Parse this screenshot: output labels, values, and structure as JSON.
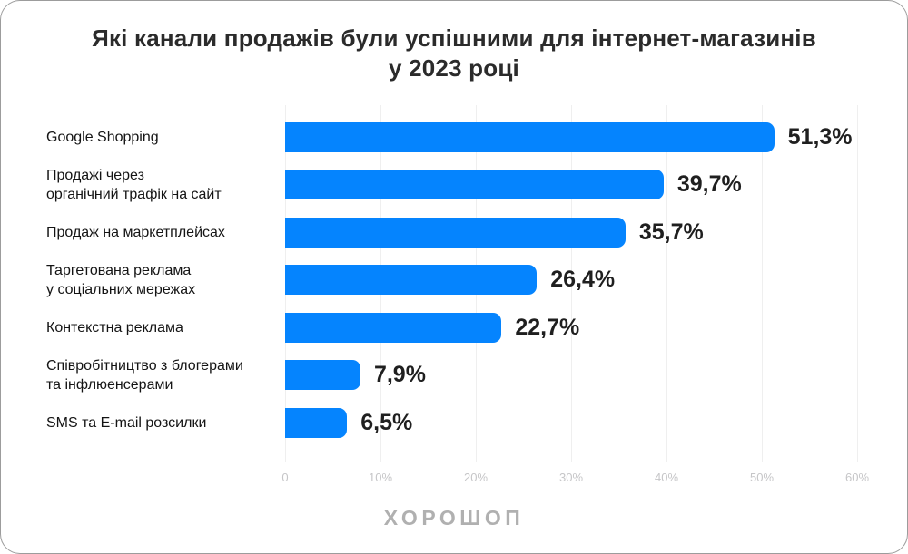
{
  "title": {
    "line1": "Які канали продажів були успішними для інтернет-магазинів",
    "line2": "у 2023 році"
  },
  "chart_data": {
    "type": "bar",
    "orientation": "horizontal",
    "title": "Які канали продажів були успішними для інтернет-магазинів у 2023 році",
    "categories": [
      "Google Shopping",
      "Продажі через органічний трафік на сайт",
      "Продаж на маркетплейсах",
      "Таргетована реклама у соціальних мережах",
      "Контекстна реклама",
      "Співробітництво з блогерами та інфлюенсерами",
      "SMS та E-mail розсилки"
    ],
    "label_lines": [
      [
        "Google Shopping"
      ],
      [
        "Продажі через",
        "органічний трафік на сайт"
      ],
      [
        "Продаж на маркетплейсах"
      ],
      [
        "Таргетована реклама",
        "у соціальних мережах"
      ],
      [
        "Контекстна реклама"
      ],
      [
        "Співробітництво з блогерами",
        "та інфлюенсерами"
      ],
      [
        "SMS та E-mail розсилки"
      ]
    ],
    "values": [
      51.3,
      39.7,
      35.7,
      26.4,
      22.7,
      7.9,
      6.5
    ],
    "value_labels": [
      "51,3%",
      "39,7%",
      "35,7%",
      "26,4%",
      "22,7%",
      "7,9%",
      "6,5%"
    ],
    "xlim": [
      0,
      60
    ],
    "x_ticks": [
      "0",
      "10%",
      "20%",
      "30%",
      "40%",
      "50%",
      "60%"
    ],
    "xlabel": "",
    "ylabel": "",
    "grid": true,
    "legend": false,
    "bar_color": "#0584fe",
    "gridline_color": "#efefef",
    "axis_line_color": "#e4e4e4",
    "tick_color": "#c6c6c8",
    "value_text_color": "#1f1f1f",
    "label_text_color": "#141414"
  },
  "footer": {
    "logo": "ХОРОШОП"
  }
}
